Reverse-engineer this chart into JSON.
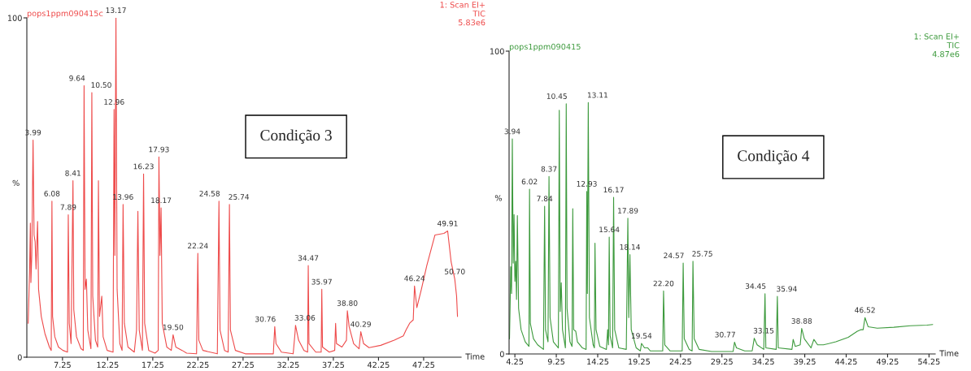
{
  "chart_data": [
    {
      "type": "line",
      "xlabel": "Time",
      "ylabel": "%",
      "xlim": [
        3.3,
        51.4
      ],
      "ylim": [
        0,
        100
      ],
      "xticks": [
        7.25,
        12.25,
        17.25,
        22.25,
        27.25,
        32.25,
        37.25,
        42.25,
        47.25
      ],
      "yticks": [
        0,
        100
      ],
      "grid": false,
      "marker": "none",
      "x": [
        3.45,
        3.6,
        3.69,
        3.75,
        3.85,
        3.99,
        4.1,
        4.22,
        4.32,
        4.49,
        4.6,
        4.9,
        5.3,
        5.8,
        6.0,
        6.08,
        6.15,
        6.4,
        6.8,
        7.3,
        7.8,
        7.89,
        8.0,
        8.2,
        8.41,
        8.5,
        8.8,
        9.3,
        9.55,
        9.64,
        9.75,
        9.9,
        10.05,
        10.4,
        10.5,
        10.6,
        10.9,
        11.15,
        11.23,
        11.35,
        11.6,
        11.75,
        12.2,
        12.85,
        12.96,
        13.05,
        13.17,
        13.3,
        13.6,
        13.85,
        13.96,
        14.1,
        14.5,
        15.2,
        15.45,
        15.6,
        15.75,
        16.1,
        16.23,
        16.35,
        16.8,
        17.5,
        17.85,
        17.93,
        18.05,
        18.17,
        18.3,
        18.8,
        19.3,
        19.5,
        19.8,
        20.5,
        21.0,
        22.1,
        22.24,
        22.35,
        22.8,
        24.4,
        24.58,
        24.7,
        25.2,
        25.6,
        25.74,
        25.85,
        26.4,
        27.5,
        30.6,
        30.76,
        30.9,
        31.5,
        32.8,
        33.0,
        33.06,
        33.4,
        34.0,
        34.4,
        34.47,
        34.55,
        35.3,
        35.9,
        35.97,
        36.05,
        36.8,
        37.4,
        37.5,
        37.6,
        38.2,
        38.7,
        38.8,
        39.0,
        39.5,
        40.1,
        40.29,
        40.6,
        41.2,
        42.5,
        44.0,
        45.0,
        45.3,
        45.7,
        46.1,
        46.24,
        46.5,
        47.0,
        47.6,
        48.5,
        49.5,
        49.91,
        50.3,
        50.7,
        50.9,
        51.0
      ],
      "series": [
        {
          "color": "#ee4b4b",
          "values": [
            10,
            25,
            39.5,
            22,
            30,
            64,
            36,
            34,
            26,
            40,
            20,
            12,
            7,
            3,
            2,
            46,
            12,
            6,
            3,
            2,
            1.5,
            42,
            10,
            4,
            52,
            14,
            6,
            2.5,
            2,
            80,
            20,
            23,
            8,
            2.5,
            78,
            18,
            5,
            3,
            52,
            12,
            18,
            6,
            2,
            1.5,
            73,
            30,
            100,
            20,
            4,
            2,
            45,
            10,
            3,
            1.5,
            8,
            43,
            8,
            2,
            54,
            10,
            2,
            1.2,
            2,
            59,
            30,
            44,
            10,
            3,
            2,
            6.6,
            3,
            2,
            1.2,
            1,
            30.6,
            5,
            2,
            1,
            46,
            8,
            2,
            1.5,
            45,
            8,
            2,
            1,
            1,
            9,
            4,
            1.5,
            1,
            7,
            9.4,
            5,
            2,
            1.5,
            27,
            4,
            1.5,
            1.5,
            20,
            3,
            1.5,
            2,
            10,
            4,
            3,
            5,
            13.7,
            9,
            4,
            2.5,
            7.5,
            4,
            2.8,
            3.5,
            5,
            6.3,
            8,
            10,
            11,
            21,
            14.6,
            20,
            27,
            36,
            36.5,
            37.2,
            28,
            23,
            18,
            12
          ]
        }
      ],
      "annotations": [
        "pops1ppm090415c",
        "1: Scan EI+\nTIC\n5.83e6",
        "Condição 3",
        {
          "text": "3.99",
          "x": 3.99,
          "y": 64
        },
        {
          "text": "6.08",
          "x": 6.08,
          "y": 46
        },
        {
          "text": "7.89",
          "x": 7.89,
          "y": 42
        },
        {
          "text": "8.41",
          "x": 8.41,
          "y": 52
        },
        {
          "text": "9.64",
          "x": 9.64,
          "y": 80
        },
        {
          "text": "10.50",
          "x": 10.5,
          "y": 78
        },
        {
          "text": "12.96",
          "x": 12.96,
          "y": 73
        },
        {
          "text": "13.17",
          "x": 13.17,
          "y": 100
        },
        {
          "text": "13.96",
          "x": 13.96,
          "y": 45
        },
        {
          "text": "16.23",
          "x": 16.23,
          "y": 54
        },
        {
          "text": "17.93",
          "x": 17.93,
          "y": 59
        },
        {
          "text": "18.17",
          "x": 18.17,
          "y": 44
        },
        {
          "text": "19.50",
          "x": 19.5,
          "y": 6.6
        },
        {
          "text": "22.24",
          "x": 22.24,
          "y": 30.6
        },
        {
          "text": "24.58",
          "x": 24.58,
          "y": 46
        },
        {
          "text": "25.74",
          "x": 25.74,
          "y": 45
        },
        {
          "text": "30.76",
          "x": 30.76,
          "y": 9
        },
        {
          "text": "33.06",
          "x": 33.06,
          "y": 9.4
        },
        {
          "text": "34.47",
          "x": 34.47,
          "y": 27
        },
        {
          "text": "35.97",
          "x": 35.97,
          "y": 20
        },
        {
          "text": "38.80",
          "x": 38.8,
          "y": 13.7
        },
        {
          "text": "40.29",
          "x": 40.29,
          "y": 7.5
        },
        {
          "text": "46.24",
          "x": 46.24,
          "y": 21
        },
        {
          "text": "49.91",
          "x": 49.91,
          "y": 37.2
        },
        {
          "text": "50.70",
          "x": 50.7,
          "y": 23
        }
      ]
    },
    {
      "type": "line",
      "xlabel": "Time",
      "ylabel": "%",
      "xlim": [
        3.55,
        55.0
      ],
      "ylim": [
        0,
        100
      ],
      "xticks": [
        4.25,
        9.25,
        14.25,
        19.25,
        24.25,
        29.25,
        34.25,
        39.25,
        44.25,
        49.25,
        54.25
      ],
      "yticks": [
        0,
        100
      ],
      "grid": false,
      "marker": "none",
      "x": [
        3.6,
        3.7,
        3.75,
        3.85,
        3.94,
        4.05,
        4.15,
        4.25,
        4.35,
        4.45,
        4.55,
        4.7,
        5.0,
        5.5,
        5.95,
        6.02,
        6.12,
        6.5,
        7.0,
        7.7,
        7.84,
        7.95,
        8.25,
        8.37,
        8.5,
        8.9,
        9.5,
        9.61,
        9.72,
        9.85,
        10.0,
        10.35,
        10.45,
        10.55,
        10.9,
        11.15,
        11.24,
        11.35,
        11.6,
        11.8,
        12.4,
        12.85,
        12.93,
        13.0,
        13.11,
        13.25,
        13.7,
        13.85,
        13.92,
        14.05,
        14.5,
        15.3,
        15.45,
        15.55,
        15.64,
        15.75,
        16.05,
        16.17,
        16.3,
        16.8,
        17.7,
        17.89,
        18.0,
        18.14,
        18.3,
        18.9,
        19.4,
        19.54,
        19.9,
        20.3,
        20.6,
        22.1,
        22.2,
        22.35,
        23.0,
        24.45,
        24.57,
        24.7,
        25.3,
        25.65,
        25.75,
        25.9,
        26.5,
        28.0,
        30.6,
        30.77,
        31.0,
        32.0,
        32.9,
        33.15,
        33.5,
        34.3,
        34.45,
        34.55,
        35.8,
        35.94,
        36.05,
        37.7,
        37.85,
        38.1,
        38.7,
        38.88,
        39.2,
        40.0,
        40.35,
        40.8,
        41.5,
        43.0,
        44.5,
        45.6,
        46.0,
        46.3,
        46.52,
        46.9,
        48.0,
        50.0,
        52.0,
        54.0,
        54.7
      ],
      "series": [
        {
          "color": "#3d9a3d",
          "values": [
            5,
            20,
            28.8,
            20,
            71,
            30,
            46,
            24,
            30.6,
            18,
            45.7,
            15,
            8,
            4,
            2.5,
            54.4,
            10,
            5,
            3,
            1.5,
            48.8,
            8,
            4,
            58.6,
            12,
            4,
            2,
            80.5,
            14,
            23.5,
            8,
            2,
            82.6,
            15,
            4,
            2.5,
            48,
            8,
            7.5,
            4,
            2,
            1.5,
            53.7,
            20,
            83,
            12,
            3,
            2,
            36.6,
            8,
            2.5,
            1.5,
            8,
            3,
            38.6,
            6,
            2,
            51.7,
            8,
            2,
            1.5,
            44.8,
            12,
            32.8,
            8,
            2,
            1,
            3.5,
            2,
            2,
            1,
            1,
            20.8,
            3,
            1,
            1,
            30,
            5,
            1.5,
            1,
            30.6,
            5,
            1.5,
            0.8,
            0.8,
            3.9,
            2,
            1,
            1,
            5.2,
            3,
            1.5,
            19.9,
            2,
            1.5,
            19,
            2,
            1.5,
            4.8,
            2.5,
            3,
            8.4,
            5,
            2,
            4.8,
            3,
            3,
            4,
            5.5,
            7.5,
            8,
            8,
            12,
            9,
            8.5,
            8.8,
            9.3,
            9.5,
            9.7
          ]
        }
      ],
      "annotations": [
        "pops1ppm090415",
        "1: Scan EI+\nTIC\n4.87e6",
        "Condição 4",
        {
          "text": "3.94",
          "x": 3.94,
          "y": 71
        },
        {
          "text": "6.02",
          "x": 6.02,
          "y": 54.4
        },
        {
          "text": "7.84",
          "x": 7.84,
          "y": 48.8
        },
        {
          "text": "8.37",
          "x": 8.37,
          "y": 58.6
        },
        {
          "text": "10.45",
          "x": 10.45,
          "y": 82.6
        },
        {
          "text": "13.11",
          "x": 13.11,
          "y": 83
        },
        {
          "text": "12.93",
          "x": 12.93,
          "y": 53.7
        },
        {
          "text": "15.64",
          "x": 15.64,
          "y": 38.6
        },
        {
          "text": "16.17",
          "x": 16.17,
          "y": 51.7
        },
        {
          "text": "17.89",
          "x": 17.89,
          "y": 44.8
        },
        {
          "text": "18.14",
          "x": 18.14,
          "y": 32.8
        },
        {
          "text": "19.54",
          "x": 19.54,
          "y": 3.5
        },
        {
          "text": "22.20",
          "x": 22.2,
          "y": 20.8
        },
        {
          "text": "24.57",
          "x": 24.57,
          "y": 30
        },
        {
          "text": "25.75",
          "x": 25.75,
          "y": 30.6
        },
        {
          "text": "30.77",
          "x": 30.77,
          "y": 3.9
        },
        {
          "text": "33.15",
          "x": 33.15,
          "y": 5.2
        },
        {
          "text": "34.45",
          "x": 34.45,
          "y": 19.9
        },
        {
          "text": "35.94",
          "x": 35.94,
          "y": 19
        },
        {
          "text": "38.88",
          "x": 38.88,
          "y": 8.4
        },
        {
          "text": "46.52",
          "x": 46.52,
          "y": 12
        }
      ]
    }
  ]
}
